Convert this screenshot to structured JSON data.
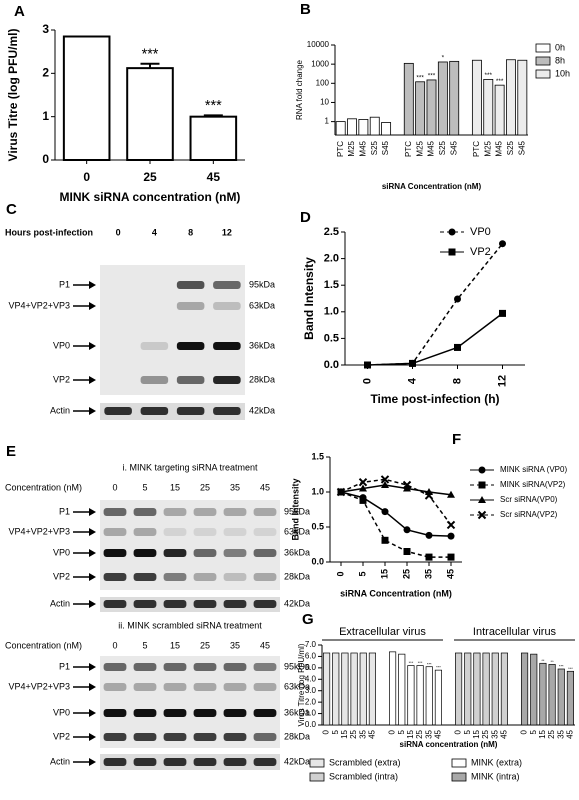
{
  "chart_data": [
    {
      "panel": "A",
      "type": "bar",
      "categories": [
        "0",
        "25",
        "45"
      ],
      "values": [
        2.85,
        2.12,
        1.0
      ],
      "errors": [
        0,
        0.1,
        0.03
      ],
      "annotations": [
        null,
        "***",
        "***"
      ],
      "color": "#ffffff",
      "ylim": [
        0,
        3
      ],
      "yticks": [
        0,
        1,
        2,
        3
      ],
      "ylabel": "Virus Titre (log PFU/ml)",
      "xlabel": "MINK siRNA concentration (nM)"
    },
    {
      "panel": "B",
      "type": "bar",
      "log_scale": true,
      "categories": [
        "PTC",
        "M25",
        "M45",
        "S25",
        "S45"
      ],
      "series": [
        {
          "name": "0h",
          "color": "#ffffff",
          "values": [
            1,
            1.4,
            1.3,
            1.7,
            0.9
          ]
        },
        {
          "name": "8h",
          "color": "#bdbdbd",
          "values": [
            1100,
            120,
            150,
            1300,
            1400
          ],
          "annotations": [
            null,
            "***",
            "***",
            "*",
            null
          ]
        },
        {
          "name": "10h",
          "color": "#ececec",
          "values": [
            1600,
            160,
            80,
            1700,
            1600
          ],
          "annotations": [
            null,
            "***",
            "***",
            null,
            null
          ]
        }
      ],
      "ylim": [
        0.2,
        10000
      ],
      "yticks": [
        1,
        10,
        100,
        1000,
        10000
      ],
      "ylabel": "RNA fold change",
      "xlabel": "siRNA Concentration (nM)",
      "legend": "top-right"
    },
    {
      "panel": "D",
      "type": "line",
      "x": [
        0,
        4,
        8,
        12
      ],
      "xlim": [
        -2,
        14
      ],
      "xticks": [
        0,
        4,
        8,
        12
      ],
      "series": [
        {
          "name": "VP0",
          "color": "#000000",
          "dashed": true,
          "marker": "circle",
          "values": [
            0,
            0.03,
            1.24,
            2.28
          ]
        },
        {
          "name": "VP2",
          "color": "#000000",
          "dashed": false,
          "marker": "square",
          "values": [
            0,
            0.03,
            0.33,
            0.97
          ]
        }
      ],
      "ylim": [
        0,
        2.5
      ],
      "yticks": [
        {
          "value": 0,
          "label": "0.0"
        },
        {
          "value": 0.5,
          "label": "0.5"
        },
        {
          "value": 1,
          "label": "1.0"
        },
        {
          "value": 1.5,
          "label": "1.5"
        },
        {
          "value": 2,
          "label": "2.0"
        },
        {
          "value": 2.5,
          "label": "2.5"
        }
      ],
      "xlabel": "Time post-infection (h)",
      "ylabel": "Band Intensity",
      "legend": "top-right"
    },
    {
      "panel": "F",
      "type": "line",
      "categories": [
        "0",
        "5",
        "15",
        "25",
        "35",
        "45"
      ],
      "series": [
        {
          "name": "MINK siRNA (VP0)",
          "color": "#000000",
          "dashed": false,
          "marker": "circle",
          "values": [
            1.0,
            0.92,
            0.72,
            0.46,
            0.38,
            0.37
          ]
        },
        {
          "name": "MINK siRNA(VP2)",
          "color": "#000000",
          "dashed": true,
          "marker": "square",
          "values": [
            1.0,
            0.88,
            0.31,
            0.15,
            0.07,
            0.07
          ]
        },
        {
          "name": "Scr siRNA(VP0)",
          "color": "#000000",
          "dashed": false,
          "marker": "triangle",
          "values": [
            1.0,
            1.05,
            1.1,
            1.05,
            1.0,
            0.96
          ]
        },
        {
          "name": "Scr siRNA(VP2)",
          "color": "#000000",
          "dashed": true,
          "marker": "cross",
          "values": [
            1.0,
            1.14,
            1.18,
            1.1,
            0.95,
            0.53
          ]
        }
      ],
      "ylim": [
        0,
        1.5
      ],
      "yticks": [
        {
          "value": 0,
          "label": "0.0"
        },
        {
          "value": 0.5,
          "label": "0.5"
        },
        {
          "value": 1,
          "label": "1.0"
        },
        {
          "value": 1.5,
          "label": "1.5"
        }
      ],
      "xlabel": "siRNA Concentration (nM)",
      "ylabel": "Band Intensity",
      "legend": "right"
    },
    {
      "panel": "G",
      "type": "bar",
      "categories": [
        "0",
        "5",
        "15",
        "25",
        "35",
        "45"
      ],
      "groups": [
        {
          "title": "Extracellular virus",
          "series": [
            {
              "name": "Scrambled (extra)",
              "color": "#e6e6e6",
              "values": [
                6.3,
                6.3,
                6.3,
                6.3,
                6.3,
                6.3
              ]
            },
            {
              "name": "MINK (extra)",
              "color": "#ffffff",
              "values": [
                6.4,
                6.2,
                5.2,
                5.2,
                5.1,
                4.8
              ],
              "annotations": [
                null,
                null,
                "***",
                "***",
                "***",
                "***"
              ]
            }
          ]
        },
        {
          "title": "Intracellular virus",
          "series": [
            {
              "name": "Scrambled (intra)",
              "color": "#d0d0d0",
              "values": [
                6.3,
                6.3,
                6.3,
                6.3,
                6.3,
                6.3
              ]
            },
            {
              "name": "MINK (intra)",
              "color": "#a8a8a8",
              "values": [
                6.3,
                6.2,
                5.4,
                5.3,
                4.9,
                4.7
              ],
              "annotations": [
                null,
                null,
                "**",
                "**",
                "***",
                "***"
              ]
            }
          ]
        }
      ],
      "ylim": [
        0,
        7
      ],
      "yticks": [
        {
          "value": 0,
          "label": "0.0"
        },
        {
          "value": 1,
          "label": "1.0"
        },
        {
          "value": 2,
          "label": "2.0"
        },
        {
          "value": 3,
          "label": "3.0"
        },
        {
          "value": 4,
          "label": "4.0"
        },
        {
          "value": 5,
          "label": "5.0"
        },
        {
          "value": 6,
          "label": "6.0"
        },
        {
          "value": 7,
          "label": "7.0"
        }
      ],
      "ylabel": "Virus Titre (log PFU/ml)",
      "xlabel": "siRNA concentration (nM)",
      "legend": "bottom"
    }
  ],
  "blots": [
    {
      "panel": "C",
      "header": "Hours post-infection",
      "lanes": [
        "0",
        "4",
        "8",
        "12"
      ],
      "bands": [
        {
          "label": "P1",
          "size": "95kDa"
        },
        {
          "label": "VP4+VP2+VP3",
          "size": "63kDa"
        },
        {
          "label": "VP0",
          "size": "36kDa"
        },
        {
          "label": "VP2",
          "size": "28kDa"
        },
        {
          "label": "Actin",
          "size": "42kDa"
        }
      ]
    },
    {
      "panel": "E",
      "title": "i. MINK targeting siRNA treatment",
      "header": "Concentration (nM)",
      "lanes": [
        "0",
        "5",
        "15",
        "25",
        "35",
        "45"
      ],
      "bands": [
        {
          "label": "P1",
          "size": "95kDa"
        },
        {
          "label": "VP4+VP2+VP3",
          "size": "63kDa"
        },
        {
          "label": "VP0",
          "size": "36kDa"
        },
        {
          "label": "VP2",
          "size": "28kDa"
        },
        {
          "label": "Actin",
          "size": "42kDa"
        }
      ]
    },
    {
      "title": "ii. MINK scrambled siRNA treatment",
      "header": "Concentration (nM)",
      "lanes": [
        "0",
        "5",
        "15",
        "25",
        "35",
        "45"
      ],
      "bands": [
        {
          "label": "P1",
          "size": "95kDa"
        },
        {
          "label": "VP4+VP2+VP3",
          "size": "63kDa"
        },
        {
          "label": "VP0",
          "size": "36kDa"
        },
        {
          "label": "VP2",
          "size": "28kDa"
        },
        {
          "label": "Actin",
          "size": "42kDa"
        }
      ]
    }
  ]
}
